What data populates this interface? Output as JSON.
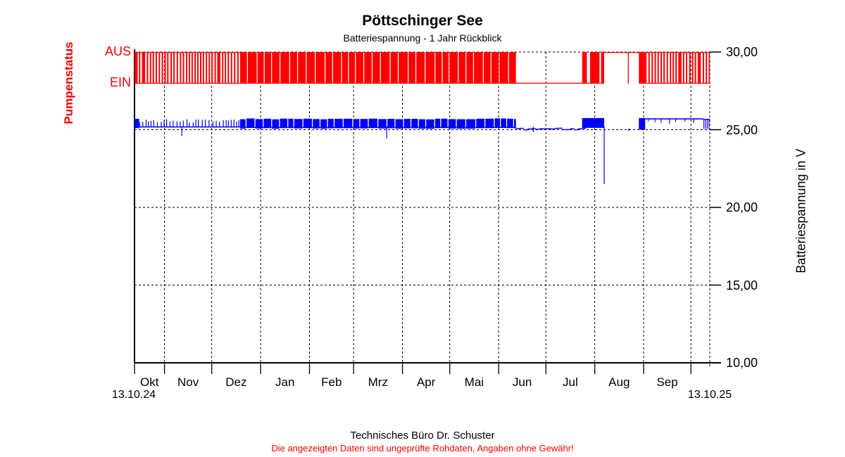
{
  "title": "Pöttschinger See",
  "subtitle": "Batteriespannung - 1 Jahr Rückblick",
  "footer": {
    "line1": "Technisches Büro Dr. Schuster",
    "line2": "Die angezeigten Daten sind ungeprüfte Rohdaten, Angaben ohne Gewähr!"
  },
  "colors": {
    "pump": "#ff0000",
    "voltage": "#0000ff",
    "axis": "#000000",
    "grid": "#000000"
  },
  "chart_data": {
    "type": "line",
    "title": "Pöttschinger See",
    "subtitle": "Batteriespannung - 1 Jahr Rückblick",
    "grid": "dashed",
    "x_axis": {
      "start_label": "13.10.24",
      "end_label": "13.10.25",
      "months": [
        "Okt",
        "Nov",
        "Dez",
        "Jan",
        "Feb",
        "Mrz",
        "Apr",
        "Mai",
        "Jun",
        "Jul",
        "Aug",
        "Sep"
      ],
      "boundary_days": [
        19,
        49,
        80,
        111,
        139,
        170,
        200,
        231,
        261,
        292,
        323,
        353
      ],
      "total_days": 365
    },
    "y_right": {
      "label": "Batteriespannung in V",
      "min": 10,
      "max": 30,
      "ticks": [
        30,
        25,
        20,
        15,
        10
      ],
      "tick_labels": [
        "30,00",
        "25,00",
        "20,00",
        "15,00",
        "10,00"
      ]
    },
    "y_left": {
      "label": "Pumpenstatus",
      "tick_labels": [
        "AUS",
        "EIN"
      ]
    },
    "pump_series": {
      "name": "Pumpenstatus",
      "color": "#ff0000",
      "segments": [
        {
          "d0": 0,
          "d1": 67,
          "mode": "toggle_fast"
        },
        {
          "d0": 67,
          "d1": 242,
          "mode": "on_mostly"
        },
        {
          "d0": 242,
          "d1": 284,
          "mode": "ein"
        },
        {
          "d0": 284,
          "d1": 287,
          "mode": "on"
        },
        {
          "d0": 287,
          "d1": 289,
          "mode": "ein"
        },
        {
          "d0": 289,
          "d1": 295,
          "mode": "on"
        },
        {
          "d0": 295,
          "d1": 296,
          "mode": "ein"
        },
        {
          "d0": 296,
          "d1": 298,
          "mode": "on"
        },
        {
          "d0": 298,
          "d1": 313,
          "mode": "aus"
        },
        {
          "d0": 313,
          "d1": 313.3,
          "mode": "pulse"
        },
        {
          "d0": 313.3,
          "d1": 320,
          "mode": "aus"
        },
        {
          "d0": 320,
          "d1": 324,
          "mode": "on"
        },
        {
          "d0": 324,
          "d1": 365,
          "mode": "toggle_fast"
        }
      ]
    },
    "voltage_series": {
      "name": "Batteriespannung",
      "color": "#0000ff",
      "unit": "V",
      "segments": [
        {
          "d0": 0,
          "d1": 3,
          "type": "band",
          "v0": 25.1,
          "v1": 25.7
        },
        {
          "d0": 3,
          "d1": 67,
          "type": "ticks_up",
          "v_base": 25.18,
          "v_top": 25.68
        },
        {
          "d0": 67,
          "d1": 242,
          "type": "band_blocks",
          "v0": 25.12,
          "v1": 25.73
        },
        {
          "d0": 242,
          "d1": 284,
          "type": "noisy_line",
          "v": 25.08
        },
        {
          "d0": 284,
          "d1": 298,
          "type": "band",
          "v0": 25.12,
          "v1": 25.75
        },
        {
          "d0": 313,
          "d1": 314,
          "type": "dot",
          "v": 25.0
        },
        {
          "d0": 320,
          "d1": 324,
          "type": "band",
          "v0": 25.0,
          "v1": 25.75
        },
        {
          "d0": 324,
          "d1": 361,
          "type": "line_ticks",
          "v": 25.7
        },
        {
          "d0": 361,
          "d1": 365,
          "type": "ticks_down",
          "v0": 25.05,
          "v1": 25.7
        }
      ],
      "spikes_down": [
        {
          "day": 30,
          "v": 24.6
        },
        {
          "day": 160,
          "v": 24.45
        },
        {
          "day": 253,
          "v": 24.85
        },
        {
          "day": 298,
          "v": 21.5
        }
      ]
    }
  }
}
